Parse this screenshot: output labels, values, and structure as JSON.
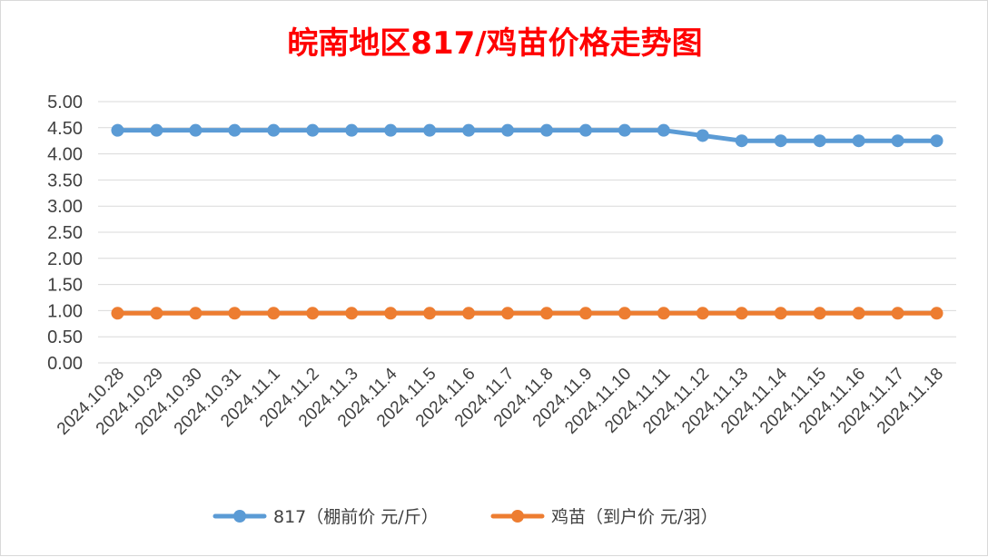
{
  "chart_data": {
    "type": "line",
    "title": "皖南地区817/鸡苗价格走势图",
    "categories": [
      "2024.10.28",
      "2024.10.29",
      "2024.10.30",
      "2024.10.31",
      "2024.11.1",
      "2024.11.2",
      "2024.11.3",
      "2024.11.4",
      "2024.11.5",
      "2024.11.6",
      "2024.11.7",
      "2024.11.8",
      "2024.11.9",
      "2024.11.10",
      "2024.11.11",
      "2024.11.12",
      "2024.11.13",
      "2024.11.14",
      "2024.11.15",
      "2024.11.16",
      "2024.11.17",
      "2024.11.18"
    ],
    "series": [
      {
        "name": "817（棚前价 元/斤）",
        "color": "#5b9bd5",
        "values": [
          4.45,
          4.45,
          4.45,
          4.45,
          4.45,
          4.45,
          4.45,
          4.45,
          4.45,
          4.45,
          4.45,
          4.45,
          4.45,
          4.45,
          4.45,
          4.35,
          4.25,
          4.25,
          4.25,
          4.25,
          4.25,
          4.25
        ]
      },
      {
        "name": "鸡苗（到户价 元/羽）",
        "color": "#ed7d31",
        "values": [
          0.95,
          0.95,
          0.95,
          0.95,
          0.95,
          0.95,
          0.95,
          0.95,
          0.95,
          0.95,
          0.95,
          0.95,
          0.95,
          0.95,
          0.95,
          0.95,
          0.95,
          0.95,
          0.95,
          0.95,
          0.95,
          0.95
        ]
      }
    ],
    "yticks": [
      "0.00",
      "0.50",
      "1.00",
      "1.50",
      "2.00",
      "2.50",
      "3.00",
      "3.50",
      "4.00",
      "4.50",
      "5.00"
    ],
    "ylim": [
      0,
      5
    ],
    "grid": "horizontal",
    "legend": "bottom",
    "title_color": "#ff0000",
    "xlabel": "",
    "ylabel": ""
  }
}
